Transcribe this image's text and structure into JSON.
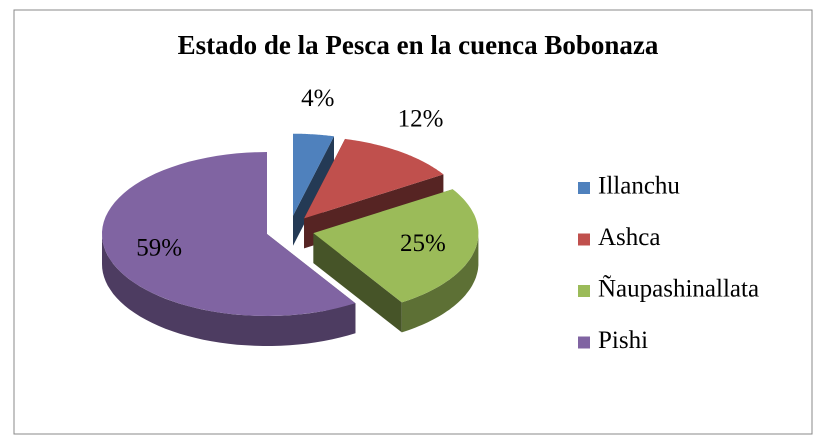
{
  "chart_data": {
    "type": "pie",
    "title": "Estado de la Pesca en la cuenca Bobonaza",
    "categories": [
      "Illanchu",
      "Ashca",
      "Ñaupashinallata",
      "Pishi"
    ],
    "values": [
      4,
      12,
      25,
      59
    ],
    "value_labels": [
      "4%",
      "12%",
      "25%",
      "59%"
    ],
    "colors": [
      "#4f81bd",
      "#c0504d",
      "#9bbb59",
      "#8064a2"
    ],
    "legend": "right",
    "three_d": true,
    "exploded": true
  }
}
